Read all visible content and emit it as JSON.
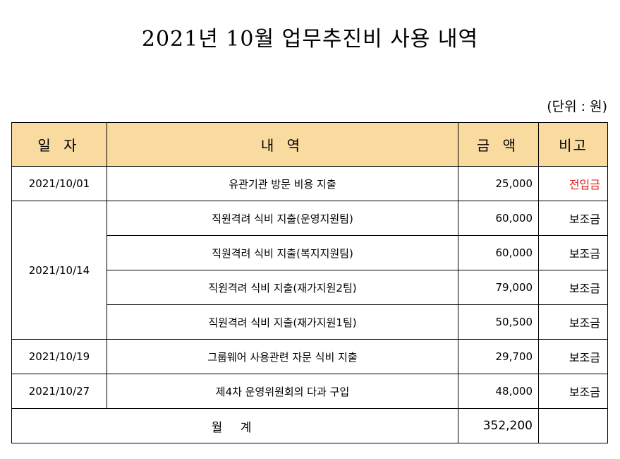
{
  "title": "2021년 10월  업무추진비 사용 내역",
  "unit": "(단위 : 원)",
  "headers": {
    "date": "일 자",
    "description": "내 역",
    "amount": "금 액",
    "note": "비고"
  },
  "rows": [
    {
      "date": "2021/10/01",
      "description": "유관기관 방문 비용 지출",
      "amount": "25,000",
      "note": "전입금"
    },
    {
      "date": "2021/10/14",
      "description": "직원격려 식비 지출(운영지원팀)",
      "amount": "60,000",
      "note": "보조금"
    },
    {
      "date": "",
      "description": "직원격려 식비 지출(복지지원팀)",
      "amount": "60,000",
      "note": "보조금"
    },
    {
      "date": "",
      "description": "직원격려 식비 지출(재가지원2팀)",
      "amount": "79,000",
      "note": "보조금"
    },
    {
      "date": "",
      "description": "직원격려 식비 지출(재가지원1팀)",
      "amount": "50,500",
      "note": "보조금"
    },
    {
      "date": "2021/10/19",
      "description": "그룹웨어 사용관련 자문 식비 지출",
      "amount": "29,700",
      "note": "보조금"
    },
    {
      "date": "2021/10/27",
      "description": "제4차 운영위원회의 다과 구입",
      "amount": "48,000",
      "note": "보조금"
    }
  ],
  "total": {
    "label": "월 계",
    "amount": "352,200",
    "note": ""
  },
  "colors": {
    "header_bg": "#f9dba0",
    "note_highlight": "#e31e1e"
  }
}
